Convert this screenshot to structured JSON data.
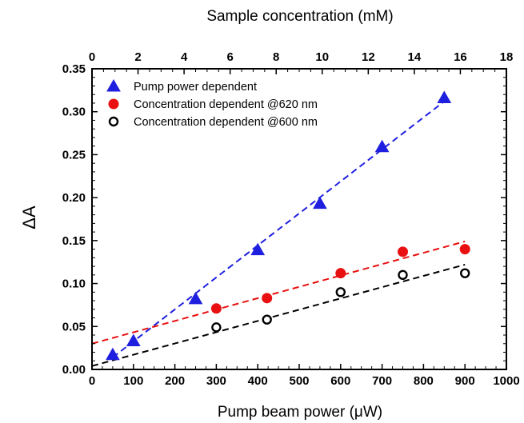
{
  "chart_data": {
    "type": "scatter",
    "title": "",
    "xlabel": "Pump beam power (μW)",
    "ylabel": "ΔA",
    "x2label": "Sample concentration (mM)",
    "xlim": [
      0,
      1000
    ],
    "ylim": [
      0,
      0.35
    ],
    "x2lim": [
      0,
      18
    ],
    "xticks": [
      "0",
      "100",
      "200",
      "300",
      "400",
      "500",
      "600",
      "700",
      "800",
      "900",
      "1000"
    ],
    "yticks": [
      "0.00",
      "0.05",
      "0.10",
      "0.15",
      "0.20",
      "0.25",
      "0.30",
      "0.35"
    ],
    "x2ticks": [
      "0",
      "2",
      "4",
      "6",
      "8",
      "10",
      "12",
      "14",
      "16",
      "18"
    ],
    "grid": false,
    "legend_position": "top-left",
    "series": [
      {
        "name": "Pump power dependent",
        "marker": "triangle",
        "color": "#1f1fe0",
        "x_axis": "bottom",
        "x": [
          50,
          100,
          250,
          400,
          550,
          700,
          850
        ],
        "y": [
          0.017,
          0.033,
          0.082,
          0.139,
          0.193,
          0.259,
          0.316
        ],
        "fit": {
          "x": [
            50,
            850
          ],
          "y": [
            0.014,
            0.312
          ],
          "color": "#1f1fe0"
        }
      },
      {
        "name": "Concentration dependent @620 nm",
        "marker": "filled-circle",
        "color": "#e81010",
        "x_axis": "top",
        "x": [
          5.4,
          7.6,
          10.8,
          13.5,
          16.2
        ],
        "y": [
          0.071,
          0.083,
          0.112,
          0.137,
          0.14
        ],
        "fit": {
          "x": [
            0,
            16.2
          ],
          "y": [
            0.03,
            0.149
          ],
          "color": "#e81010"
        }
      },
      {
        "name": "Concentration dependent @600 nm",
        "marker": "open-circle",
        "color": "#000000",
        "x_axis": "top",
        "x": [
          5.4,
          7.6,
          10.8,
          13.5,
          16.2
        ],
        "y": [
          0.049,
          0.058,
          0.09,
          0.11,
          0.112
        ],
        "fit": {
          "x": [
            0,
            16.2
          ],
          "y": [
            0.004,
            0.122
          ],
          "color": "#000000"
        }
      }
    ]
  }
}
